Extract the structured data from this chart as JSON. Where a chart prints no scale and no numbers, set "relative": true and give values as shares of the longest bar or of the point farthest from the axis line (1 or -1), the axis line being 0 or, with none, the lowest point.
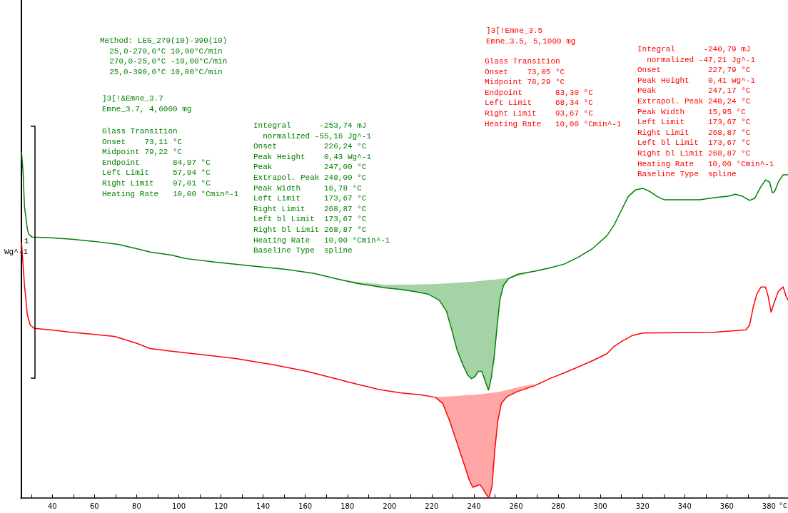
{
  "chart_data": {
    "type": "line",
    "relative": true,
    "xlabel": "°C",
    "xlim": [
      25,
      389
    ],
    "xticks": [
      {
        "value": 30,
        "label": null
      },
      40,
      {
        "value": 50,
        "label": null
      },
      60,
      {
        "value": 70,
        "label": null
      },
      80,
      {
        "value": 90,
        "label": null
      },
      100,
      {
        "value": 110,
        "label": null
      },
      120,
      {
        "value": 130,
        "label": null
      },
      140,
      {
        "value": 150,
        "label": null
      },
      160,
      {
        "value": 170,
        "label": null
      },
      180,
      {
        "value": 190,
        "label": null
      },
      200,
      {
        "value": 210,
        "label": null
      },
      220,
      {
        "value": 230,
        "label": null
      },
      240,
      {
        "value": 250,
        "label": null
      },
      260,
      {
        "value": 270,
        "label": null
      },
      280,
      {
        "value": 290,
        "label": null
      },
      300,
      {
        "value": 310,
        "label": null
      },
      320,
      {
        "value": 330,
        "label": null
      },
      340,
      {
        "value": 350,
        "label": null
      },
      360,
      {
        "value": 370,
        "label": null
      },
      380
    ],
    "series": [
      {
        "color": "#008000",
        "x": [
          25.4,
          26.1,
          26.8,
          27.5,
          28.1,
          28.8,
          30.5,
          39.0,
          49.1,
          59.3,
          71.2,
          79.6,
          86.4,
          96.5,
          103.3,
          116.9,
          133.8,
          150.7,
          164.3,
          174.4,
          184.6,
          191.4,
          198.1,
          204.9,
          211.7,
          218.4,
          223.5,
          226.9,
          229.3,
          232.0,
          234.7,
          237.1,
          238.8,
          240.5,
          242.1,
          243.8,
          245.5,
          246.9,
          248.2,
          249.6,
          250.9,
          252.3,
          254.0,
          256.4,
          260.8,
          268.6,
          276.0,
          282.8,
          289.6,
          296.3,
          303.1,
          306.5,
          309.9,
          313.3,
          316.6,
          320.0,
          323.4,
          326.8,
          330.2,
          347.1,
          353.9,
          360.7,
          364.0,
          367.4,
          370.8,
          373.2,
          375.9,
          378.3,
          380.3,
          381.6,
          382.7,
          384.4,
          386.7,
          389.0
        ],
        "values": [
          1.0,
          0.944,
          0.841,
          0.81,
          0.779,
          0.762,
          0.754,
          0.752,
          0.748,
          0.742,
          0.733,
          0.721,
          0.711,
          0.702,
          0.692,
          0.682,
          0.671,
          0.661,
          0.649,
          0.634,
          0.62,
          0.614,
          0.607,
          0.603,
          0.597,
          0.589,
          0.572,
          0.541,
          0.49,
          0.428,
          0.386,
          0.355,
          0.345,
          0.351,
          0.366,
          0.366,
          0.335,
          0.312,
          0.345,
          0.407,
          0.49,
          0.572,
          0.614,
          0.634,
          0.647,
          0.655,
          0.665,
          0.676,
          0.696,
          0.721,
          0.758,
          0.789,
          0.831,
          0.872,
          0.89,
          0.895,
          0.886,
          0.872,
          0.862,
          0.862,
          0.868,
          0.872,
          0.878,
          0.872,
          0.86,
          0.866,
          0.897,
          0.919,
          0.913,
          0.882,
          0.886,
          0.913,
          0.934,
          0.934
        ],
        "lower": [
          null,
          null,
          null,
          null,
          null,
          null,
          null,
          null,
          null,
          null,
          null,
          null,
          null,
          null,
          null,
          null,
          null,
          null,
          null,
          0.634,
          0.62,
          0.614,
          0.607,
          0.603,
          0.597,
          0.589,
          0.572,
          0.541,
          0.49,
          0.428,
          0.386,
          0.355,
          0.345,
          0.351,
          0.366,
          0.366,
          0.335,
          0.312,
          0.345,
          0.407,
          0.49,
          0.572,
          0.614,
          0.634,
          0.641,
          0.655,
          null,
          null,
          null,
          null,
          null,
          null,
          null,
          null,
          null,
          null,
          null,
          null,
          null,
          null,
          null,
          null,
          null,
          null,
          null,
          null,
          null,
          null,
          null,
          null,
          null,
          null,
          null,
          null
        ],
        "upper": [
          null,
          null,
          null,
          null,
          null,
          null,
          null,
          null,
          null,
          null,
          null,
          null,
          null,
          null,
          null,
          null,
          null,
          null,
          null,
          0.634,
          0.625,
          0.62,
          0.616,
          0.617,
          0.617,
          0.618,
          0.619,
          0.62,
          0.621,
          0.622,
          0.623,
          0.624,
          0.625,
          0.626,
          0.627,
          0.628,
          0.629,
          0.63,
          0.631,
          0.631,
          0.632,
          0.633,
          0.634,
          0.636,
          0.647,
          0.655,
          null,
          null,
          null,
          null,
          null,
          null,
          null,
          null,
          null,
          null,
          null,
          null,
          null,
          null,
          null,
          null,
          null,
          null,
          null,
          null,
          null,
          null,
          null,
          null,
          null,
          null,
          null,
          null
        ]
      },
      {
        "color": "#ff0000",
        "x": [
          25.4,
          26.1,
          26.8,
          27.5,
          28.1,
          29.5,
          31.5,
          39.0,
          49.1,
          59.3,
          69.5,
          79.6,
          86.4,
          96.5,
          110.1,
          127.0,
          144.0,
          160.9,
          174.4,
          184.6,
          194.7,
          204.9,
          215.1,
          221.8,
          225.2,
          228.6,
          232.0,
          235.4,
          237.8,
          239.5,
          241.2,
          242.8,
          244.5,
          245.9,
          247.2,
          248.6,
          249.9,
          251.3,
          253.0,
          255.7,
          260.8,
          268.6,
          276.0,
          286.2,
          296.3,
          303.1,
          306.5,
          309.9,
          314.9,
          320.0,
          353.9,
          369.1,
          370.8,
          372.5,
          374.2,
          376.2,
          378.3,
          379.6,
          381.0,
          382.3,
          384.4,
          386.7,
          388.1,
          389.0
        ],
        "values": [
          0.738,
          0.676,
          0.614,
          0.572,
          0.531,
          0.5,
          0.49,
          0.486,
          0.479,
          0.473,
          0.467,
          0.448,
          0.432,
          0.424,
          0.415,
          0.403,
          0.386,
          0.366,
          0.345,
          0.329,
          0.314,
          0.304,
          0.298,
          0.291,
          0.273,
          0.221,
          0.159,
          0.097,
          0.052,
          0.031,
          0.035,
          0.039,
          0.025,
          0.01,
          0,
          0.035,
          0.138,
          0.221,
          0.273,
          0.293,
          0.308,
          0.324,
          0.345,
          0.37,
          0.397,
          0.417,
          0.438,
          0.452,
          0.469,
          0.477,
          0.479,
          0.486,
          0.5,
          0.552,
          0.589,
          0.61,
          0.61,
          0.583,
          0.537,
          0.562,
          0.597,
          0.61,
          0.583,
          0.572
        ],
        "lower": [
          null,
          null,
          null,
          null,
          null,
          null,
          null,
          null,
          null,
          null,
          null,
          null,
          null,
          null,
          null,
          null,
          null,
          null,
          0.345,
          0.329,
          0.314,
          0.3,
          0.293,
          0.291,
          0.273,
          0.221,
          0.159,
          0.097,
          0.052,
          0.031,
          0.035,
          0.039,
          0.025,
          0.01,
          0,
          0.035,
          0.138,
          0.221,
          0.273,
          0.293,
          0.308,
          0.324,
          null,
          null,
          null,
          null,
          null,
          null,
          null,
          null,
          null,
          null,
          null,
          null,
          null,
          null,
          null,
          null,
          null,
          null,
          null,
          null,
          null,
          null
        ],
        "upper": [
          null,
          null,
          null,
          null,
          null,
          null,
          null,
          null,
          null,
          null,
          null,
          null,
          null,
          null,
          null,
          null,
          null,
          null,
          0.345,
          0.329,
          0.314,
          0.3,
          0.293,
          0.292,
          0.293,
          0.294,
          0.295,
          0.297,
          0.298,
          0.298,
          0.299,
          0.3,
          0.301,
          0.302,
          0.303,
          0.304,
          0.305,
          0.306,
          0.308,
          0.312,
          0.32,
          0.329,
          null,
          null,
          null,
          null,
          null,
          null,
          null,
          null,
          null,
          null,
          null,
          null,
          null,
          null,
          null,
          null,
          null,
          null,
          null,
          null,
          null,
          null
        ]
      }
    ],
    "annotations": [
      "Method: LEG_270(10)-390(10)\n  25,0-270,0°C 10,00°C/min\n  270,0-25,0°C -10,00°C/min\n  25,0-390,0°C 10,00°C/min",
      "]3[!&Emne_3.7\nEmne_3.7, 4,6000 mg",
      "Glass Transition\nOnset    73,11 °C\nMidpoint 79,22 °C\nEndpoint       84,97 °C\nLeft Limit     57,94 °C\nRight Limit    97,01 °C\nHeating Rate   10,00 °Cmin^-1",
      "Integral      -253,74 mJ\n  normalized -55,16 Jg^-1\nOnset          226,24 °C\nPeak Height    0,43 Wg^-1\nPeak           247,00 °C\nExtrapol. Peak 248,00 °C\nPeak Width     16,78 °C\nLeft Limit     173,67 °C\nRight Limit    268,87 °C\nLeft bl Limit  173,67 °C\nRight bl Limit 268,87 °C\nHeating Rate   10,00 °Cmin^-1\nBaseline Type  spline",
      "]3[!Emne_3.5\nEmne_3.5, 5,1000 mg",
      "Glass Transition\nOnset    73,05 °C\nMidpoint 78,29 °C\nEndpoint       83,30 °C\nLeft Limit     68,34 °C\nRight Limit    93,67 °C\nHeating Rate   10,00 °Cmin^-1",
      "Integral      -240,79 mJ\n  normalized -47,21 Jg^-1\nOnset          227,79 °C\nPeak Height    0,41 Wg^-1\nPeak           247,17 °C\nExtrapol. Peak 248,24 °C\nPeak Width     15,95 °C\nLeft Limit     173,67 °C\nRight Limit    268,87 °C\nLeft bl Limit  173,67 °C\nRight bl Limit 268,87 °C\nHeating Rate   10,00 °Cmin^-1\nBaseline Type  spline",
      "1",
      "Wg^-1"
    ]
  }
}
